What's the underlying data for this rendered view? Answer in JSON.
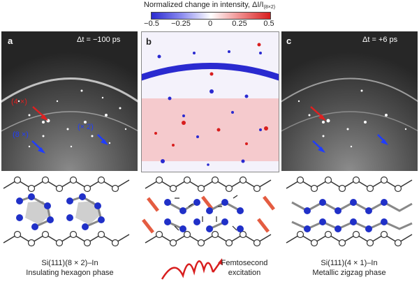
{
  "colorbar": {
    "title": "Normalized change in intensity, ΔI/I",
    "title_subscript": "(8×2)",
    "ticks": [
      "−0.5",
      "−0.25",
      "0",
      "0.25",
      "0.5"
    ],
    "colors": {
      "low": "#2a2ad0",
      "mid": "#ffffff",
      "high": "#d81e1e"
    }
  },
  "panels": [
    {
      "letter": "a",
      "time_label": "Δt = −100 ps"
    },
    {
      "letter": "b",
      "time_label": ""
    },
    {
      "letter": "c",
      "time_label": "Δt = +6 ps"
    }
  ],
  "arrow_labels": {
    "red": "(4 ×)",
    "blue_left": "(8 ×)",
    "blue_right": "(× 2)",
    "colors": {
      "red": "#e02020",
      "blue": "#1f3cff"
    }
  },
  "captions": {
    "left_line1": "Si(111)(8 × 2)–In",
    "left_line2": "Insulating hexagon phase",
    "middle_line1": "Femtosecond",
    "middle_line2": "excitation",
    "right_line1": "Si(111)(4 × 1)–In",
    "right_line2": "Metallic zigzag phase"
  }
}
